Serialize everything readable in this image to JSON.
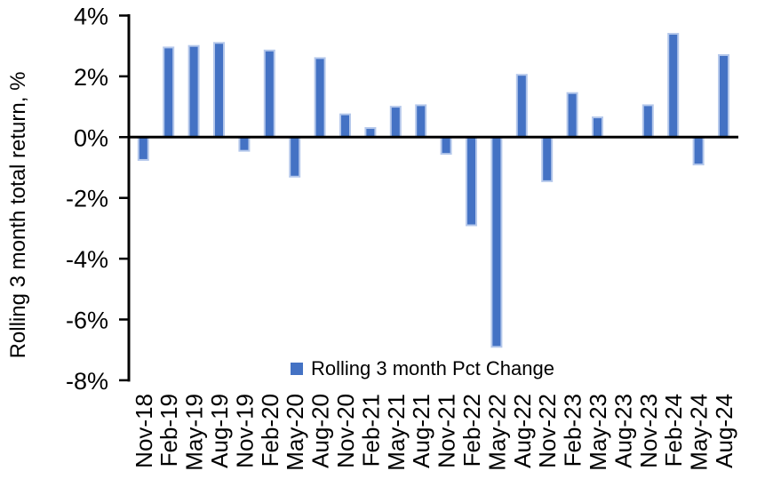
{
  "chart_data": {
    "type": "bar",
    "title": "",
    "xlabel": "",
    "ylabel": "Rolling 3 month total return, %",
    "categories": [
      "Nov-18",
      "Feb-19",
      "May-19",
      "Aug-19",
      "Nov-19",
      "Feb-20",
      "May-20",
      "Aug-20",
      "Nov-20",
      "Feb-21",
      "May-21",
      "Aug-21",
      "Nov-21",
      "Feb-22",
      "May-22",
      "Aug-22",
      "Nov-22",
      "Feb-23",
      "May-23",
      "Aug-23",
      "Nov-23",
      "Feb-24",
      "May-24",
      "Aug-24"
    ],
    "series": [
      {
        "name": "Rolling 3 month Pct Change",
        "values": [
          -0.75,
          2.95,
          3.0,
          3.1,
          -0.45,
          2.85,
          -1.3,
          2.6,
          0.75,
          0.3,
          1.0,
          1.05,
          -0.55,
          -2.9,
          -6.9,
          2.05,
          -1.45,
          1.45,
          0.65,
          0.0,
          1.05,
          3.4,
          -0.9,
          2.7
        ]
      }
    ],
    "ylim": [
      -8,
      4
    ],
    "ytick_values": [
      4,
      2,
      0,
      -2,
      -4,
      -6,
      -8
    ],
    "ytick_labels": [
      "4%",
      "2%",
      "0%",
      "-2%",
      "-4%",
      "-6%",
      "-8%"
    ],
    "grid": false,
    "legend": [
      "Rolling 3 month Pct Change"
    ],
    "legend_position": "bottom-center",
    "bar_color": "#4472C4",
    "bar_border_color": "#B5C8EB",
    "axis_color": "#000000",
    "text_color": "#000000"
  }
}
